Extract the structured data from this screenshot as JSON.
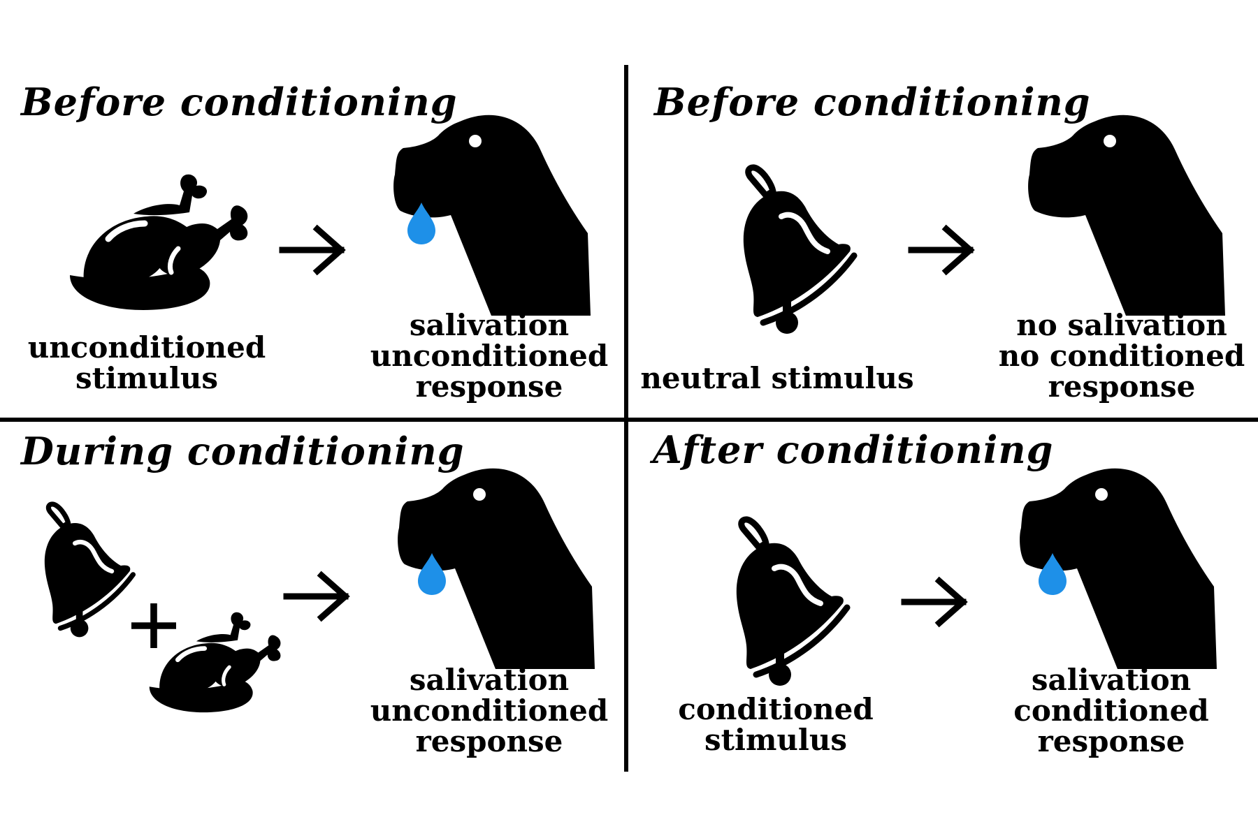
{
  "colors": {
    "ink": "#000000",
    "background": "#ffffff",
    "drop": "#1e90e8"
  },
  "panels": [
    {
      "title": "Before conditioning",
      "stimulus_label": [
        "unconditioned",
        "stimulus"
      ],
      "stimulus_icons": [
        "roast-chicken-icon"
      ],
      "response_label": [
        "salivation",
        "unconditioned",
        "response"
      ],
      "response_icon": "dog-head-icon",
      "drool": true
    },
    {
      "title": "Before conditioning",
      "stimulus_label": [
        "neutral stimulus"
      ],
      "stimulus_icons": [
        "bell-icon"
      ],
      "response_label": [
        "no salivation",
        "no conditioned",
        "response"
      ],
      "response_icon": "dog-head-icon",
      "drool": false
    },
    {
      "title": "During conditioning",
      "stimulus_label": [],
      "stimulus_icons": [
        "bell-icon",
        "plus-icon",
        "roast-chicken-icon"
      ],
      "response_label": [
        "salivation",
        "unconditioned",
        "response"
      ],
      "response_icon": "dog-head-icon",
      "drool": true
    },
    {
      "title": "After conditioning",
      "stimulus_label": [
        "conditioned",
        "stimulus"
      ],
      "stimulus_icons": [
        "bell-icon"
      ],
      "response_label": [
        "salivation",
        "conditioned",
        "response"
      ],
      "response_icon": "dog-head-icon",
      "drool": true
    }
  ]
}
